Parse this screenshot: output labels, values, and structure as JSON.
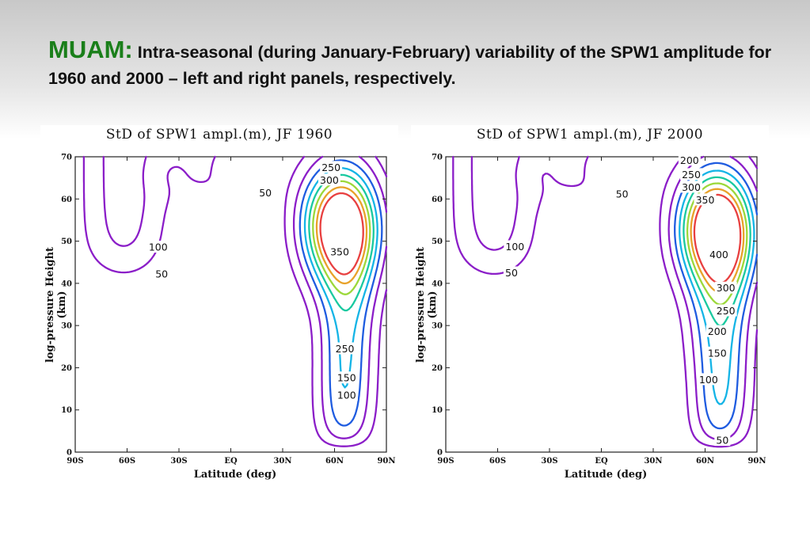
{
  "slide": {
    "lead": "MUAM:",
    "title": "Intra-seasonal (during January-February) variability of the SPW1 amplitude for 1960 and 2000 – left and right panels, respectively."
  },
  "chart_data": [
    {
      "type": "contour",
      "title": "StD of SPW1 ampl.(m), JF 1960",
      "xlabel": "Latitude (deg)",
      "ylabel": "log-pressure Height (km)",
      "x_ticks": [
        "90S",
        "60S",
        "30S",
        "EQ",
        "30N",
        "60N",
        "90N"
      ],
      "y_ticks": [
        "0",
        "10",
        "20",
        "30",
        "40",
        "50",
        "60",
        "70"
      ],
      "xlim": [
        -90,
        90
      ],
      "ylim": [
        0,
        70
      ],
      "levels": [
        50,
        100,
        150,
        200,
        250,
        300,
        350,
        400
      ],
      "level_colors": {
        "50": "#8b1ec8",
        "100": "#8b1ec8",
        "150": "#1f5ce0",
        "200": "#14b4e6",
        "250": "#19c9a0",
        "300": "#9cd83a",
        "350": "#e8a22a",
        "400": "#e84040"
      },
      "max_center": {
        "lat": 63,
        "height": 54
      },
      "labels": [
        {
          "text": "50",
          "lat": -40,
          "height": 42.2
        },
        {
          "text": "100",
          "lat": -42,
          "height": 48.6
        },
        {
          "text": "50",
          "lat": 20,
          "height": 61.5
        },
        {
          "text": "250",
          "lat": 58,
          "height": 67.5
        },
        {
          "text": "300",
          "lat": 57,
          "height": 64.5
        },
        {
          "text": "350",
          "lat": 63,
          "height": 47.5
        },
        {
          "text": "250",
          "lat": 66,
          "height": 24.5
        },
        {
          "text": "150",
          "lat": 67,
          "height": 17.6
        },
        {
          "text": "100",
          "lat": 67,
          "height": 13.5
        }
      ]
    },
    {
      "type": "contour",
      "title": "StD of SPW1 ampl.(m), JF 2000",
      "xlabel": "Latitude (deg)",
      "ylabel": "log-pressure Height (km)",
      "x_ticks": [
        "90S",
        "60S",
        "30S",
        "EQ",
        "30N",
        "60N",
        "90N"
      ],
      "y_ticks": [
        "0",
        "10",
        "20",
        "30",
        "40",
        "50",
        "60",
        "70"
      ],
      "xlim": [
        -90,
        90
      ],
      "ylim": [
        0,
        70
      ],
      "levels": [
        50,
        100,
        150,
        200,
        250,
        300,
        350,
        400
      ],
      "level_colors": {
        "50": "#8b1ec8",
        "100": "#8b1ec8",
        "150": "#1f5ce0",
        "200": "#14b4e6",
        "250": "#19c9a0",
        "300": "#9cd83a",
        "350": "#e8a22a",
        "400": "#e84040"
      },
      "max_center": {
        "lat": 66,
        "height": 53
      },
      "labels": [
        {
          "text": "50",
          "lat": -52,
          "height": 42.5
        },
        {
          "text": "100",
          "lat": -50,
          "height": 48.7
        },
        {
          "text": "50",
          "lat": 12,
          "height": 61.2
        },
        {
          "text": "200",
          "lat": 51,
          "height": 69.2
        },
        {
          "text": "250",
          "lat": 52,
          "height": 65.8
        },
        {
          "text": "300",
          "lat": 52,
          "height": 62.8
        },
        {
          "text": "350",
          "lat": 60,
          "height": 59.8
        },
        {
          "text": "400",
          "lat": 68,
          "height": 46.8
        },
        {
          "text": "300",
          "lat": 72,
          "height": 38.9
        },
        {
          "text": "250",
          "lat": 72,
          "height": 33.5
        },
        {
          "text": "200",
          "lat": 67,
          "height": 28.6
        },
        {
          "text": "150",
          "lat": 67,
          "height": 23.5
        },
        {
          "text": "100",
          "lat": 62,
          "height": 17.2
        },
        {
          "text": "50",
          "lat": 70,
          "height": 2.8
        }
      ]
    }
  ]
}
